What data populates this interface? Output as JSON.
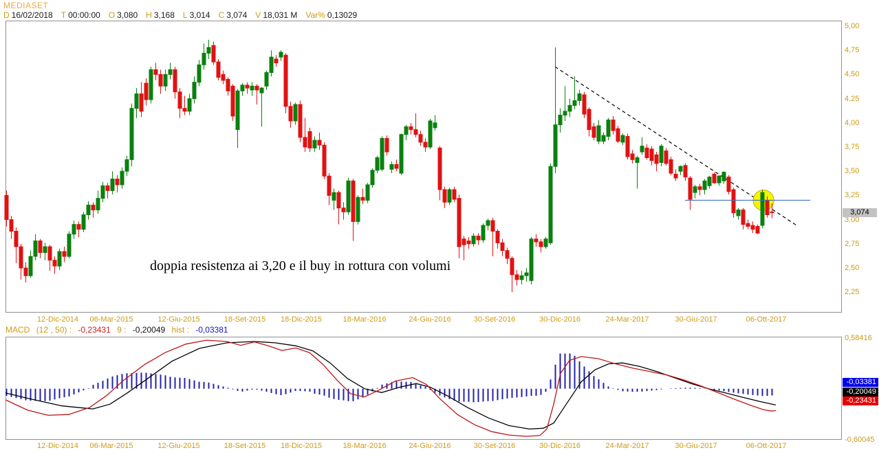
{
  "header": {
    "symbol": "MEDIASET",
    "fields": [
      {
        "label": "D",
        "value": "16/02/2018"
      },
      {
        "label": "T",
        "value": "00:00:00"
      },
      {
        "label": "O",
        "value": "3,080"
      },
      {
        "label": "H",
        "value": "3,168"
      },
      {
        "label": "L",
        "value": "3,014"
      },
      {
        "label": "C",
        "value": "3,074"
      },
      {
        "label": "V",
        "value": "18,031 M"
      },
      {
        "label": "Var%",
        "value": "0,13029"
      }
    ]
  },
  "colors": {
    "up": "#0a800f",
    "down": "#e01212",
    "gold": "#cf9a12",
    "hist": "#2121aa",
    "signal": "#000000",
    "macd": "#c01414",
    "resistance": "#3f6fc1",
    "circle_fill": "#f8f400",
    "circle_stroke": "#c9a900",
    "panel_border": "#909090"
  },
  "chart_data": {
    "type": "candlestick",
    "title": "MEDIASET weekly candlestick with MACD",
    "price_axis": {
      "ylim_labels": [
        "5,00",
        "4,75",
        "4,50",
        "4,25",
        "4,00",
        "3,75",
        "3,50",
        "3,25",
        "3,00",
        "2,75",
        "2,50",
        "2,25"
      ],
      "ylim_values": [
        5.0,
        4.75,
        4.5,
        4.25,
        4.0,
        3.75,
        3.5,
        3.25,
        3.0,
        2.75,
        2.5,
        2.25
      ],
      "last_price_label": "3,074"
    },
    "date_labels": [
      "12-Dic-2014",
      "06-Mar-2015",
      "12-Giu-2015",
      "18-Set-2015",
      "18-Dic-2015",
      "18-Mar-2016",
      "24-Giu-2016",
      "30-Set-2016",
      "30-Dic-2016",
      "24-Mar-2017",
      "30-Giu-2017",
      "06-Ott-2017"
    ],
    "candles_ohlc": [
      [
        3.25,
        3.3,
        2.93,
        3.0
      ],
      [
        3.0,
        3.04,
        2.8,
        2.88
      ],
      [
        2.88,
        2.92,
        2.55,
        2.72
      ],
      [
        2.72,
        2.75,
        2.38,
        2.5
      ],
      [
        2.5,
        2.56,
        2.35,
        2.42
      ],
      [
        2.42,
        2.68,
        2.4,
        2.62
      ],
      [
        2.62,
        2.85,
        2.58,
        2.78
      ],
      [
        2.78,
        2.8,
        2.6,
        2.66
      ],
      [
        2.66,
        2.76,
        2.58,
        2.72
      ],
      [
        2.72,
        2.74,
        2.47,
        2.58
      ],
      [
        2.58,
        2.62,
        2.44,
        2.52
      ],
      [
        2.52,
        2.7,
        2.48,
        2.67
      ],
      [
        2.67,
        2.72,
        2.56,
        2.62
      ],
      [
        2.62,
        2.88,
        2.6,
        2.85
      ],
      [
        2.85,
        2.99,
        2.8,
        2.95
      ],
      [
        2.95,
        2.98,
        2.82,
        2.9
      ],
      [
        2.9,
        3.08,
        2.87,
        3.05
      ],
      [
        3.05,
        3.19,
        3.0,
        3.15
      ],
      [
        3.15,
        3.18,
        3.02,
        3.1
      ],
      [
        3.1,
        3.3,
        3.06,
        3.22
      ],
      [
        3.22,
        3.39,
        3.18,
        3.35
      ],
      [
        3.35,
        3.38,
        3.22,
        3.3
      ],
      [
        3.3,
        3.5,
        3.26,
        3.42
      ],
      [
        3.42,
        3.46,
        3.28,
        3.36
      ],
      [
        3.36,
        3.54,
        3.32,
        3.5
      ],
      [
        3.5,
        3.66,
        3.45,
        3.62
      ],
      [
        3.62,
        4.2,
        3.55,
        4.15
      ],
      [
        4.15,
        4.36,
        4.05,
        4.3
      ],
      [
        4.3,
        4.42,
        4.06,
        4.12
      ],
      [
        4.41,
        4.46,
        4.18,
        4.24
      ],
      [
        4.24,
        4.58,
        4.2,
        4.55
      ],
      [
        4.55,
        4.62,
        4.44,
        4.5
      ],
      [
        4.5,
        4.55,
        4.3,
        4.38
      ],
      [
        4.38,
        4.55,
        4.33,
        4.5
      ],
      [
        4.5,
        4.62,
        4.45,
        4.55
      ],
      [
        4.55,
        4.58,
        4.25,
        4.32
      ],
      [
        4.32,
        4.36,
        4.05,
        4.15
      ],
      [
        4.15,
        4.28,
        4.08,
        4.12
      ],
      [
        4.12,
        4.3,
        4.08,
        4.25
      ],
      [
        4.25,
        4.48,
        4.2,
        4.42
      ],
      [
        4.42,
        4.65,
        4.38,
        4.6
      ],
      [
        4.6,
        4.82,
        4.55,
        4.72
      ],
      [
        4.72,
        4.86,
        4.66,
        4.78
      ],
      [
        4.8,
        4.84,
        4.6,
        4.63
      ],
      [
        4.63,
        4.66,
        4.44,
        4.47
      ],
      [
        4.5,
        4.54,
        4.4,
        4.44
      ],
      [
        4.45,
        4.47,
        4.28,
        4.33
      ],
      [
        4.38,
        4.4,
        4.02,
        4.07
      ],
      [
        3.93,
        4.35,
        3.74,
        4.33
      ],
      [
        4.33,
        4.41,
        4.28,
        4.39
      ],
      [
        4.39,
        4.42,
        4.3,
        4.36
      ],
      [
        4.34,
        4.42,
        4.28,
        4.38
      ],
      [
        4.38,
        4.4,
        4.19,
        4.34
      ],
      [
        4.31,
        4.37,
        3.96,
        4.36
      ],
      [
        4.38,
        4.54,
        4.34,
        4.52
      ],
      [
        4.52,
        4.75,
        4.48,
        4.68
      ],
      [
        4.66,
        4.7,
        4.58,
        4.62
      ],
      [
        4.68,
        4.75,
        4.64,
        4.73
      ],
      [
        4.7,
        4.72,
        4.1,
        4.17
      ],
      [
        4.17,
        4.22,
        3.95,
        4.02
      ],
      [
        4.02,
        4.21,
        3.98,
        4.19
      ],
      [
        4.19,
        4.23,
        3.8,
        3.85
      ],
      [
        3.85,
        4.05,
        3.7,
        3.75
      ],
      [
        3.91,
        3.95,
        3.7,
        3.74
      ],
      [
        3.74,
        3.86,
        3.7,
        3.82
      ],
      [
        3.82,
        3.9,
        3.72,
        3.77
      ],
      [
        3.77,
        3.8,
        3.42,
        3.45
      ],
      [
        3.45,
        3.48,
        3.15,
        3.25
      ],
      [
        3.2,
        3.32,
        3.1,
        3.28
      ],
      [
        3.28,
        3.3,
        2.95,
        3.12
      ],
      [
        3.12,
        3.18,
        3.0,
        3.08
      ],
      [
        3.08,
        3.43,
        3.05,
        3.4
      ],
      [
        3.4,
        3.42,
        2.78,
        2.98
      ],
      [
        2.98,
        3.25,
        2.95,
        3.23
      ],
      [
        3.23,
        3.32,
        3.16,
        3.2
      ],
      [
        3.2,
        3.38,
        3.17,
        3.36
      ],
      [
        3.36,
        3.53,
        3.33,
        3.51
      ],
      [
        3.51,
        3.66,
        3.48,
        3.64
      ],
      [
        3.52,
        3.86,
        3.5,
        3.84
      ],
      [
        3.84,
        3.87,
        3.66,
        3.7
      ],
      [
        3.52,
        3.6,
        3.48,
        3.57
      ],
      [
        3.57,
        3.62,
        3.5,
        3.53
      ],
      [
        3.48,
        3.89,
        3.46,
        3.88
      ],
      [
        3.88,
        3.98,
        3.82,
        3.96
      ],
      [
        3.96,
        4.0,
        3.88,
        3.93
      ],
      [
        3.93,
        4.1,
        3.85,
        3.88
      ],
      [
        3.88,
        3.92,
        3.76,
        3.8
      ],
      [
        3.8,
        3.84,
        3.7,
        3.75
      ],
      [
        3.75,
        4.04,
        3.73,
        4.02
      ],
      [
        3.95,
        4.08,
        3.92,
        4.0
      ],
      [
        3.74,
        3.76,
        3.2,
        3.31
      ],
      [
        3.31,
        3.34,
        3.12,
        3.18
      ],
      [
        3.18,
        3.33,
        3.15,
        3.31
      ],
      [
        3.31,
        3.34,
        3.18,
        3.21
      ],
      [
        3.22,
        3.26,
        2.6,
        2.72
      ],
      [
        2.8,
        2.83,
        2.58,
        2.74
      ],
      [
        2.78,
        2.82,
        2.7,
        2.75
      ],
      [
        2.75,
        2.86,
        2.72,
        2.83
      ],
      [
        2.83,
        2.86,
        2.74,
        2.79
      ],
      [
        2.79,
        2.96,
        2.76,
        2.94
      ],
      [
        2.94,
        3.01,
        2.89,
        2.99
      ],
      [
        2.99,
        3.02,
        2.62,
        2.88
      ],
      [
        2.88,
        2.9,
        2.7,
        2.76
      ],
      [
        2.76,
        2.8,
        2.62,
        2.68
      ],
      [
        2.68,
        2.71,
        2.54,
        2.6
      ],
      [
        2.6,
        2.62,
        2.25,
        2.43
      ],
      [
        2.43,
        2.48,
        2.32,
        2.38
      ],
      [
        2.38,
        2.47,
        2.33,
        2.42
      ],
      [
        2.42,
        2.5,
        2.36,
        2.45
      ],
      [
        2.37,
        2.82,
        2.33,
        2.8
      ],
      [
        2.8,
        2.85,
        2.72,
        2.77
      ],
      [
        2.77,
        2.8,
        2.66,
        2.72
      ],
      [
        2.72,
        2.82,
        2.7,
        2.8
      ],
      [
        2.76,
        3.58,
        2.74,
        3.55
      ],
      [
        3.55,
        4.78,
        3.48,
        3.98
      ],
      [
        3.98,
        4.15,
        3.9,
        4.08
      ],
      [
        4.08,
        4.38,
        4.02,
        4.12
      ],
      [
        4.12,
        4.25,
        4.06,
        4.18
      ],
      [
        4.18,
        4.48,
        4.14,
        4.23
      ],
      [
        4.23,
        4.34,
        4.18,
        4.3
      ],
      [
        4.29,
        4.32,
        4.05,
        4.09
      ],
      [
        4.14,
        4.16,
        3.86,
        3.93
      ],
      [
        3.96,
        4.0,
        3.82,
        3.85
      ],
      [
        3.81,
        4.03,
        3.78,
        3.97
      ],
      [
        3.81,
        3.9,
        3.78,
        3.87
      ],
      [
        3.86,
        4.05,
        3.82,
        4.03
      ],
      [
        4.03,
        4.07,
        3.88,
        3.92
      ],
      [
        3.94,
        3.97,
        3.79,
        3.81
      ],
      [
        3.8,
        3.89,
        3.77,
        3.87
      ],
      [
        3.86,
        3.89,
        3.62,
        3.65
      ],
      [
        3.68,
        3.72,
        3.58,
        3.62
      ],
      [
        3.59,
        3.66,
        3.32,
        3.64
      ],
      [
        3.7,
        3.85,
        3.67,
        3.76
      ],
      [
        3.74,
        3.78,
        3.62,
        3.64
      ],
      [
        3.73,
        3.76,
        3.56,
        3.61
      ],
      [
        3.67,
        3.7,
        3.5,
        3.58
      ],
      [
        3.59,
        3.78,
        3.55,
        3.76
      ],
      [
        3.71,
        3.74,
        3.56,
        3.58
      ],
      [
        3.62,
        3.65,
        3.46,
        3.48
      ],
      [
        3.47,
        3.52,
        3.4,
        3.43
      ],
      [
        3.5,
        3.56,
        3.46,
        3.55
      ],
      [
        3.56,
        3.58,
        3.4,
        3.44
      ],
      [
        3.43,
        3.45,
        3.1,
        3.21
      ],
      [
        3.28,
        3.36,
        3.22,
        3.34
      ],
      [
        3.34,
        3.37,
        3.25,
        3.31
      ],
      [
        3.31,
        3.42,
        3.26,
        3.4
      ],
      [
        3.35,
        3.45,
        3.32,
        3.44
      ],
      [
        3.47,
        3.49,
        3.37,
        3.38
      ],
      [
        3.38,
        3.46,
        3.35,
        3.45
      ],
      [
        3.4,
        3.5,
        3.37,
        3.49
      ],
      [
        3.44,
        3.46,
        3.26,
        3.29
      ],
      [
        3.31,
        3.33,
        3.02,
        3.07
      ],
      [
        3.04,
        3.12,
        3.0,
        3.1
      ],
      [
        3.1,
        3.12,
        2.9,
        2.95
      ],
      [
        2.96,
        3.0,
        2.9,
        2.93
      ],
      [
        2.94,
        2.98,
        2.86,
        2.9
      ],
      [
        2.93,
        2.95,
        2.85,
        2.86
      ],
      [
        2.94,
        3.31,
        2.91,
        3.28
      ],
      [
        3.2,
        3.24,
        3.02,
        3.05
      ],
      [
        3.08,
        3.168,
        3.014,
        3.074
      ]
    ],
    "overlays": {
      "resistance_line": {
        "price": 3.2,
        "from_bar": 141,
        "to_bar": 167
      },
      "trendline_dashed": {
        "from": {
          "bar": 114,
          "price": 4.58
        },
        "to": {
          "bar": 164.5,
          "price": 2.93
        }
      },
      "highlight_circle": {
        "bar": 157.3,
        "price": 3.2,
        "radius_px": 15
      }
    },
    "annotation": {
      "text": "doppia resistenza ai 3,20 e il buy in rottura con volumi"
    },
    "macd": {
      "header": {
        "name": "MACD",
        "params": "(12 , 50) :",
        "macd_value": "-0,23431",
        "signal_label": "9 :",
        "signal_value": "-0,20049",
        "hist_label": "hist :",
        "hist_value": "-0,03381"
      },
      "scale_top_label": "0,58416",
      "scale_bottom_label": "-0,60045",
      "scale_top_value": 0.58416,
      "scale_bottom_value": -0.60045,
      "end_labels": [
        {
          "text": "-0,03381",
          "bg": "#0000e6"
        },
        {
          "text": "-0,20049",
          "bg": "#000000"
        },
        {
          "text": "-0,23431",
          "bg": "#e60000"
        }
      ],
      "signal_line": [
        [
          8,
          -0.05
        ],
        [
          45,
          -0.12
        ],
        [
          90,
          -0.2
        ],
        [
          135,
          -0.235
        ],
        [
          160,
          -0.18
        ],
        [
          185,
          -0.05
        ],
        [
          215,
          0.12
        ],
        [
          250,
          0.32
        ],
        [
          290,
          0.47
        ],
        [
          330,
          0.535
        ],
        [
          370,
          0.55
        ],
        [
          400,
          0.535
        ],
        [
          430,
          0.5
        ],
        [
          455,
          0.44
        ],
        [
          480,
          0.3
        ],
        [
          505,
          0.12
        ],
        [
          530,
          0.0
        ],
        [
          555,
          -0.045
        ],
        [
          580,
          0.015
        ],
        [
          605,
          0.06
        ],
        [
          625,
          0.02
        ],
        [
          650,
          -0.08
        ],
        [
          680,
          -0.22
        ],
        [
          710,
          -0.34
        ],
        [
          740,
          -0.43
        ],
        [
          770,
          -0.47
        ],
        [
          790,
          -0.46
        ],
        [
          805,
          -0.4
        ],
        [
          815,
          -0.28
        ],
        [
          830,
          -0.1
        ],
        [
          845,
          0.08
        ],
        [
          865,
          0.22
        ],
        [
          885,
          0.29
        ],
        [
          905,
          0.3
        ],
        [
          930,
          0.26
        ],
        [
          955,
          0.2
        ],
        [
          980,
          0.13
        ],
        [
          1005,
          0.06
        ],
        [
          1030,
          0.0
        ],
        [
          1055,
          -0.05
        ],
        [
          1080,
          -0.1
        ],
        [
          1105,
          -0.15
        ],
        [
          1128,
          -0.19
        ]
      ],
      "macd_line": [
        [
          8,
          -0.13
        ],
        [
          40,
          -0.25
        ],
        [
          70,
          -0.31
        ],
        [
          100,
          -0.3
        ],
        [
          130,
          -0.22
        ],
        [
          155,
          -0.08
        ],
        [
          180,
          0.1
        ],
        [
          210,
          0.28
        ],
        [
          240,
          0.42
        ],
        [
          270,
          0.52
        ],
        [
          300,
          0.565
        ],
        [
          330,
          0.55
        ],
        [
          350,
          0.505
        ],
        [
          370,
          0.545
        ],
        [
          390,
          0.5
        ],
        [
          410,
          0.445
        ],
        [
          430,
          0.475
        ],
        [
          450,
          0.42
        ],
        [
          470,
          0.28
        ],
        [
          490,
          0.1
        ],
        [
          510,
          -0.06
        ],
        [
          530,
          -0.095
        ],
        [
          550,
          -0.02
        ],
        [
          575,
          0.09
        ],
        [
          600,
          0.13
        ],
        [
          620,
          0.05
        ],
        [
          640,
          -0.12
        ],
        [
          665,
          -0.3
        ],
        [
          690,
          -0.42
        ],
        [
          715,
          -0.5
        ],
        [
          740,
          -0.54
        ],
        [
          765,
          -0.555
        ],
        [
          785,
          -0.545
        ],
        [
          795,
          -0.47
        ],
        [
          805,
          -0.18
        ],
        [
          815,
          0.18
        ],
        [
          828,
          0.33
        ],
        [
          845,
          0.375
        ],
        [
          870,
          0.35
        ],
        [
          895,
          0.29
        ],
        [
          920,
          0.24
        ],
        [
          945,
          0.2
        ],
        [
          970,
          0.16
        ],
        [
          995,
          0.1
        ],
        [
          1020,
          0.03
        ],
        [
          1045,
          -0.05
        ],
        [
          1070,
          -0.13
        ],
        [
          1090,
          -0.19
        ],
        [
          1110,
          -0.245
        ],
        [
          1122,
          -0.26
        ],
        [
          1128,
          -0.255
        ]
      ]
    }
  }
}
